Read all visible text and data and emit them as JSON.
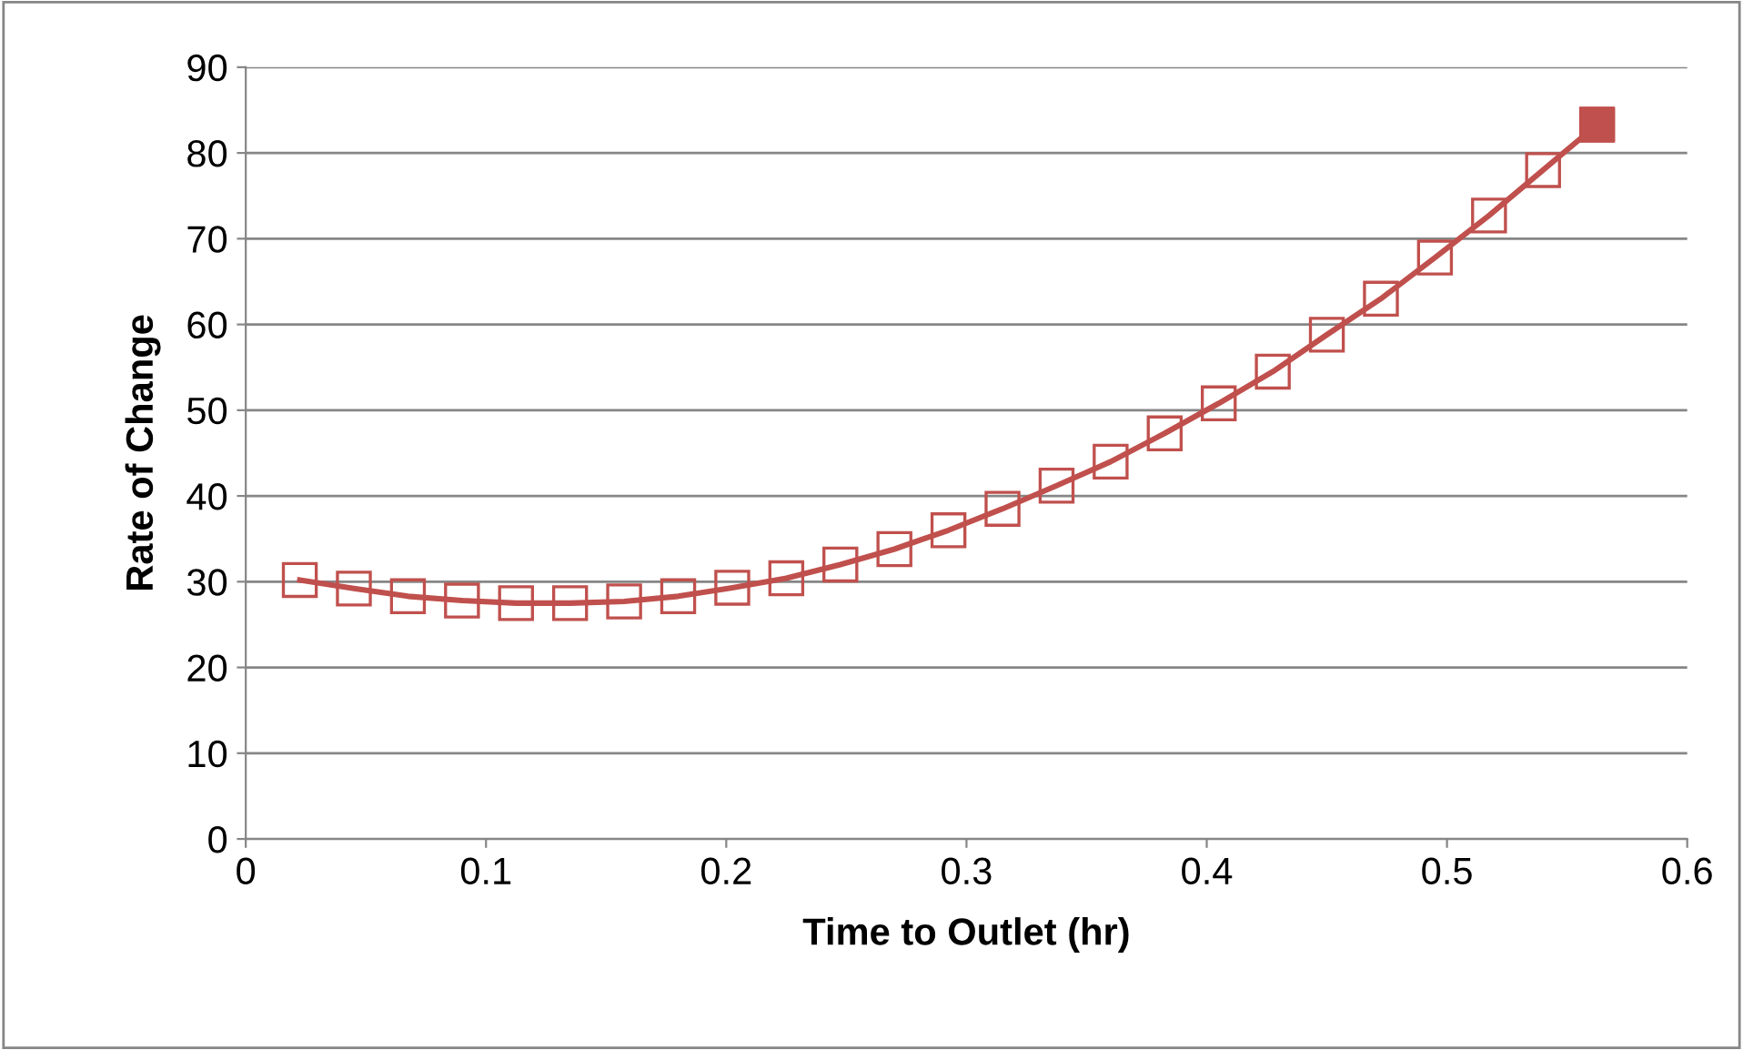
{
  "chart_data": {
    "type": "line",
    "xlabel": "Time to Outlet (hr)",
    "ylabel": "Rate of Change",
    "xlim": [
      0,
      0.6
    ],
    "xticks": [
      0,
      0.1,
      0.2,
      0.3,
      0.4,
      0.5,
      0.6
    ],
    "ylim": [
      0,
      90
    ],
    "yticks": [
      0,
      10,
      20,
      30,
      40,
      50,
      60,
      70,
      80,
      90
    ],
    "grid": "y",
    "marker": "square",
    "line_style": "solid",
    "series": [
      {
        "color": "#c0504d",
        "x": [
          0.0225,
          0.045,
          0.0675,
          0.09,
          0.1125,
          0.135,
          0.1575,
          0.18,
          0.2025,
          0.225,
          0.2475,
          0.27,
          0.2925,
          0.315,
          0.3375,
          0.36,
          0.3825,
          0.405,
          0.4275,
          0.45,
          0.4725,
          0.495,
          0.5175,
          0.54,
          0.5625
        ],
        "values": [
          30.2,
          29.2,
          28.3,
          27.8,
          27.5,
          27.5,
          27.7,
          28.3,
          29.3,
          30.4,
          32.0,
          33.8,
          36.0,
          38.5,
          41.2,
          44.0,
          47.3,
          50.8,
          54.5,
          58.8,
          63.0,
          67.8,
          72.7,
          78.0,
          83.3
        ]
      },
      {
        "type": "scatter",
        "color": "#c0504d",
        "x": [
          0.5625
        ],
        "values": [
          83.3
        ]
      }
    ]
  }
}
